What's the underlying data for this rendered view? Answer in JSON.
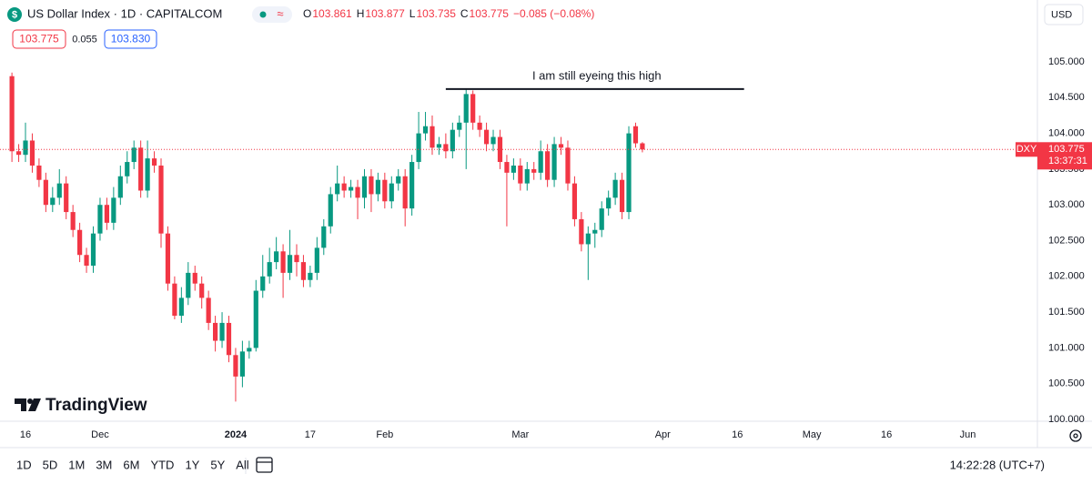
{
  "header": {
    "symbol": "US Dollar Index · 1D · CAPITALCOM",
    "ohlc": [
      {
        "label": "O",
        "value": "103.861"
      },
      {
        "label": "H",
        "value": "103.877"
      },
      {
        "label": "L",
        "value": "103.735"
      },
      {
        "label": "C",
        "value": "103.775"
      }
    ],
    "change": "−0.085 (−0.08%)",
    "sell": "103.775",
    "spread": "0.055",
    "buy": "103.830"
  },
  "chart_data": {
    "type": "candlestick",
    "up_color": "#089981",
    "down_color": "#f23645",
    "x": [
      -2,
      -1,
      0,
      1,
      2,
      3,
      4,
      5,
      6,
      7,
      8,
      9,
      10,
      11,
      12,
      13,
      14,
      15,
      16,
      17,
      18,
      19,
      20,
      21,
      22,
      23,
      24,
      25,
      26,
      27,
      28,
      29,
      30,
      31,
      32,
      33,
      34,
      35,
      36,
      37,
      38,
      39,
      40,
      41,
      42,
      43,
      44,
      45,
      46,
      47,
      48,
      49,
      50,
      51,
      52,
      53,
      54,
      55,
      56,
      57,
      58,
      59,
      60,
      61,
      62,
      63,
      64,
      65,
      66,
      67,
      68,
      69,
      70,
      71,
      72,
      73,
      74,
      75,
      76,
      77,
      78,
      79,
      80,
      81,
      82,
      83,
      84,
      85,
      86,
      87,
      88,
      89,
      90,
      91
    ],
    "open": [
      104.8,
      103.75,
      103.7,
      103.9,
      103.55,
      103.35,
      103.0,
      103.1,
      103.3,
      102.9,
      102.65,
      102.3,
      102.15,
      102.6,
      103.0,
      102.75,
      103.1,
      103.4,
      103.6,
      103.8,
      103.2,
      103.65,
      103.55,
      102.6,
      101.9,
      101.45,
      101.7,
      102.05,
      101.9,
      101.7,
      101.35,
      101.1,
      101.35,
      100.9,
      100.6,
      100.95,
      101.0,
      101.8,
      102.0,
      102.2,
      102.35,
      102.05,
      102.3,
      102.2,
      101.95,
      102.05,
      102.4,
      102.7,
      103.15,
      103.3,
      103.2,
      103.25,
      103.1,
      103.4,
      103.15,
      103.35,
      103.05,
      103.3,
      103.4,
      102.95,
      103.6,
      104.0,
      104.1,
      103.8,
      103.85,
      103.75,
      104.05,
      104.15,
      104.55,
      104.15,
      104.05,
      103.85,
      103.95,
      103.6,
      103.45,
      103.55,
      103.3,
      103.5,
      103.45,
      103.75,
      103.35,
      103.85,
      103.8,
      103.3,
      102.8,
      102.45,
      102.6,
      102.65,
      102.95,
      103.1,
      103.35,
      102.9,
      104.1,
      103.861
    ],
    "high": [
      104.85,
      103.85,
      104.15,
      104.0,
      103.65,
      103.45,
      103.25,
      103.5,
      103.4,
      103.0,
      102.75,
      102.4,
      102.7,
      103.1,
      103.1,
      103.25,
      103.55,
      103.75,
      103.9,
      103.9,
      103.9,
      103.75,
      103.65,
      102.7,
      102.0,
      101.85,
      102.2,
      102.15,
      102.0,
      101.8,
      101.45,
      101.5,
      101.45,
      101.0,
      101.1,
      101.1,
      101.95,
      102.3,
      102.4,
      102.55,
      102.45,
      102.65,
      102.45,
      102.3,
      102.15,
      102.55,
      102.8,
      103.25,
      103.55,
      103.4,
      103.35,
      103.35,
      103.5,
      103.5,
      103.45,
      103.45,
      103.4,
      103.5,
      103.5,
      103.7,
      104.3,
      104.3,
      104.25,
      103.95,
      104.0,
      104.15,
      104.25,
      104.62,
      104.6,
      104.25,
      104.15,
      104.05,
      104.05,
      103.7,
      103.65,
      103.65,
      103.6,
      103.6,
      103.9,
      103.85,
      103.95,
      103.95,
      103.9,
      103.4,
      102.9,
      102.7,
      102.75,
      103.05,
      103.2,
      103.45,
      103.45,
      104.1,
      104.15,
      103.877
    ],
    "low": [
      103.6,
      103.6,
      103.6,
      103.45,
      103.25,
      102.9,
      102.9,
      103.0,
      102.8,
      102.55,
      102.2,
      102.05,
      102.05,
      102.5,
      102.65,
      102.65,
      103.0,
      103.3,
      103.5,
      103.1,
      103.1,
      103.45,
      102.4,
      101.8,
      101.4,
      101.35,
      101.6,
      101.8,
      101.55,
      101.25,
      100.95,
      101.0,
      100.8,
      100.25,
      100.45,
      100.85,
      100.95,
      101.7,
      101.9,
      102.1,
      101.7,
      101.95,
      102.0,
      101.85,
      101.85,
      101.95,
      102.3,
      102.6,
      103.05,
      103.1,
      103.1,
      102.8,
      102.95,
      102.9,
      103.05,
      102.95,
      102.95,
      103.2,
      102.7,
      102.85,
      103.5,
      103.9,
      103.7,
      103.7,
      103.65,
      103.65,
      103.95,
      103.5,
      104.05,
      103.95,
      103.75,
      103.75,
      103.5,
      102.7,
      103.35,
      103.2,
      103.2,
      103.35,
      103.35,
      103.25,
      103.25,
      103.7,
      103.2,
      102.7,
      102.35,
      101.95,
      102.4,
      102.55,
      102.85,
      103.0,
      102.8,
      102.8,
      103.8,
      103.735
    ],
    "close": [
      103.75,
      103.7,
      103.9,
      103.55,
      103.35,
      103.0,
      103.1,
      103.3,
      102.9,
      102.65,
      102.3,
      102.15,
      102.6,
      103.0,
      102.75,
      103.1,
      103.4,
      103.6,
      103.8,
      103.2,
      103.65,
      103.55,
      102.6,
      101.9,
      101.45,
      101.7,
      102.05,
      101.9,
      101.7,
      101.35,
      101.1,
      101.35,
      100.9,
      100.6,
      100.95,
      101.0,
      101.8,
      102.0,
      102.2,
      102.35,
      102.05,
      102.3,
      102.2,
      101.95,
      102.05,
      102.4,
      102.7,
      103.15,
      103.3,
      103.2,
      103.25,
      103.1,
      103.4,
      103.15,
      103.35,
      103.05,
      103.3,
      103.4,
      102.95,
      103.6,
      104.0,
      104.1,
      103.8,
      103.85,
      103.75,
      104.05,
      104.15,
      104.55,
      104.15,
      104.05,
      103.85,
      103.95,
      103.6,
      103.45,
      103.55,
      103.3,
      103.5,
      103.45,
      103.75,
      103.35,
      103.85,
      103.8,
      103.3,
      102.8,
      102.45,
      102.6,
      102.65,
      102.95,
      103.1,
      103.35,
      102.9,
      104.0,
      103.861,
      103.775
    ],
    "xlim": [
      -3.76,
      149.27
    ],
    "xticks": [
      {
        "value": 0,
        "label": "16"
      },
      {
        "value": 11,
        "label": "Dec"
      },
      {
        "value": 31,
        "label": "2024"
      },
      {
        "value": 42,
        "label": "17"
      },
      {
        "value": 53,
        "label": "Feb"
      },
      {
        "value": 73,
        "label": "Mar"
      },
      {
        "value": 94,
        "label": "Apr"
      },
      {
        "value": 105,
        "label": "16"
      },
      {
        "value": 116,
        "label": "May"
      },
      {
        "value": 127,
        "label": "16"
      },
      {
        "value": 139,
        "label": "Jun"
      }
    ],
    "ylim": [
      99.975,
      105.865
    ],
    "yticks": [
      {
        "value": 100,
        "label": "100.000"
      },
      {
        "value": 100.5,
        "label": "100.500"
      },
      {
        "value": 101,
        "label": "101.000"
      },
      {
        "value": 101.5,
        "label": "101.500"
      },
      {
        "value": 102,
        "label": "102.000"
      },
      {
        "value": 102.5,
        "label": "102.500"
      },
      {
        "value": 103,
        "label": "103.000"
      },
      {
        "value": 103.5,
        "label": "103.500"
      },
      {
        "value": 104,
        "label": "104.000"
      },
      {
        "value": 104.5,
        "label": "104.500"
      },
      {
        "value": 105,
        "label": "105.000"
      }
    ],
    "grid": false,
    "annotation": {
      "text": "I am still eyeing this high",
      "level": 104.62,
      "x": [
        62,
        106
      ]
    }
  },
  "price_axis": {
    "currency": "USD",
    "symbol_tag": "DXY",
    "last_price": "103.775",
    "countdown": "13:37:31"
  },
  "brand": "TradingView",
  "toolbar": {
    "ranges": [
      "1D",
      "5D",
      "1M",
      "3M",
      "6M",
      "YTD",
      "1Y",
      "5Y",
      "All"
    ],
    "clock": "14:22:28 (UTC+7)"
  }
}
